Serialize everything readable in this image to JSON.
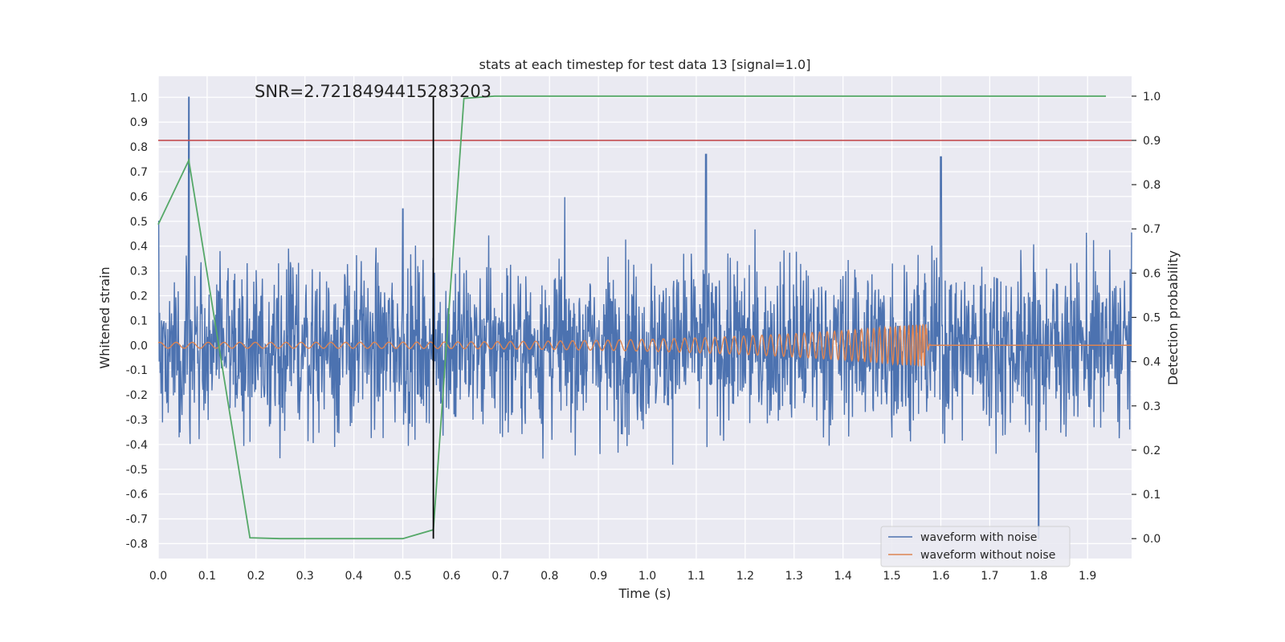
{
  "chart_data": {
    "type": "line",
    "title": "stats at each timestep for test data 13 [signal=1.0]",
    "xlabel": "Time (s)",
    "ylabel_left": "Whitened strain",
    "ylabel_right": "Detection probability",
    "xlim": [
      0.0,
      1.99
    ],
    "ylim_left": [
      -0.86,
      1.085
    ],
    "ylim_right": [
      -0.045,
      1.045
    ],
    "x_ticks": [
      "0.0",
      "0.1",
      "0.2",
      "0.3",
      "0.4",
      "0.5",
      "0.6",
      "0.7",
      "0.8",
      "0.9",
      "1.0",
      "1.1",
      "1.2",
      "1.3",
      "1.4",
      "1.5",
      "1.6",
      "1.7",
      "1.8",
      "1.9"
    ],
    "y_left_ticks": [
      "-0.8",
      "-0.7",
      "-0.6",
      "-0.5",
      "-0.4",
      "-0.3",
      "-0.2",
      "-0.1",
      "0.0",
      "0.1",
      "0.2",
      "0.3",
      "0.4",
      "0.5",
      "0.6",
      "0.7",
      "0.8",
      "0.9",
      "1.0"
    ],
    "y_right_ticks": [
      "0.0",
      "0.1",
      "0.2",
      "0.3",
      "0.4",
      "0.5",
      "0.6",
      "0.7",
      "0.8",
      "0.9",
      "1.0"
    ],
    "grid": true,
    "legend_position": "bottom-right",
    "annotation": "SNR=2.7218494415283203",
    "threshold_right": 0.9,
    "marker_x": 0.5625,
    "series": [
      {
        "name": "waveform with noise",
        "color": "#4c72b0",
        "axis": "left",
        "description_points": [
          [
            0.0,
            0.5
          ],
          [
            0.0625,
            1.0
          ],
          [
            0.5,
            0.55
          ],
          [
            1.12,
            0.77
          ],
          [
            1.6,
            0.76
          ],
          [
            1.8,
            -0.78
          ]
        ]
      },
      {
        "name": "waveform without noise",
        "color": "#dd8452",
        "axis": "left",
        "chirp": {
          "start": 0.0,
          "end": 1.57,
          "amp_start": 0.012,
          "amp_end": 0.09
        }
      },
      {
        "name": "",
        "color": "#55a868",
        "axis": "right",
        "x": [
          0.0,
          0.0625,
          0.1875,
          0.25,
          0.5,
          0.5625,
          0.625,
          0.6875,
          1.9375
        ],
        "y": [
          0.71,
          0.855,
          0.002,
          0.0,
          0.0,
          0.02,
          0.995,
          1.0,
          1.0
        ]
      }
    ],
    "colors": {
      "plot_bg": "#eaeaf2",
      "grid": "#ffffff",
      "threshold": "#c44e52",
      "marker": "#000000"
    }
  }
}
